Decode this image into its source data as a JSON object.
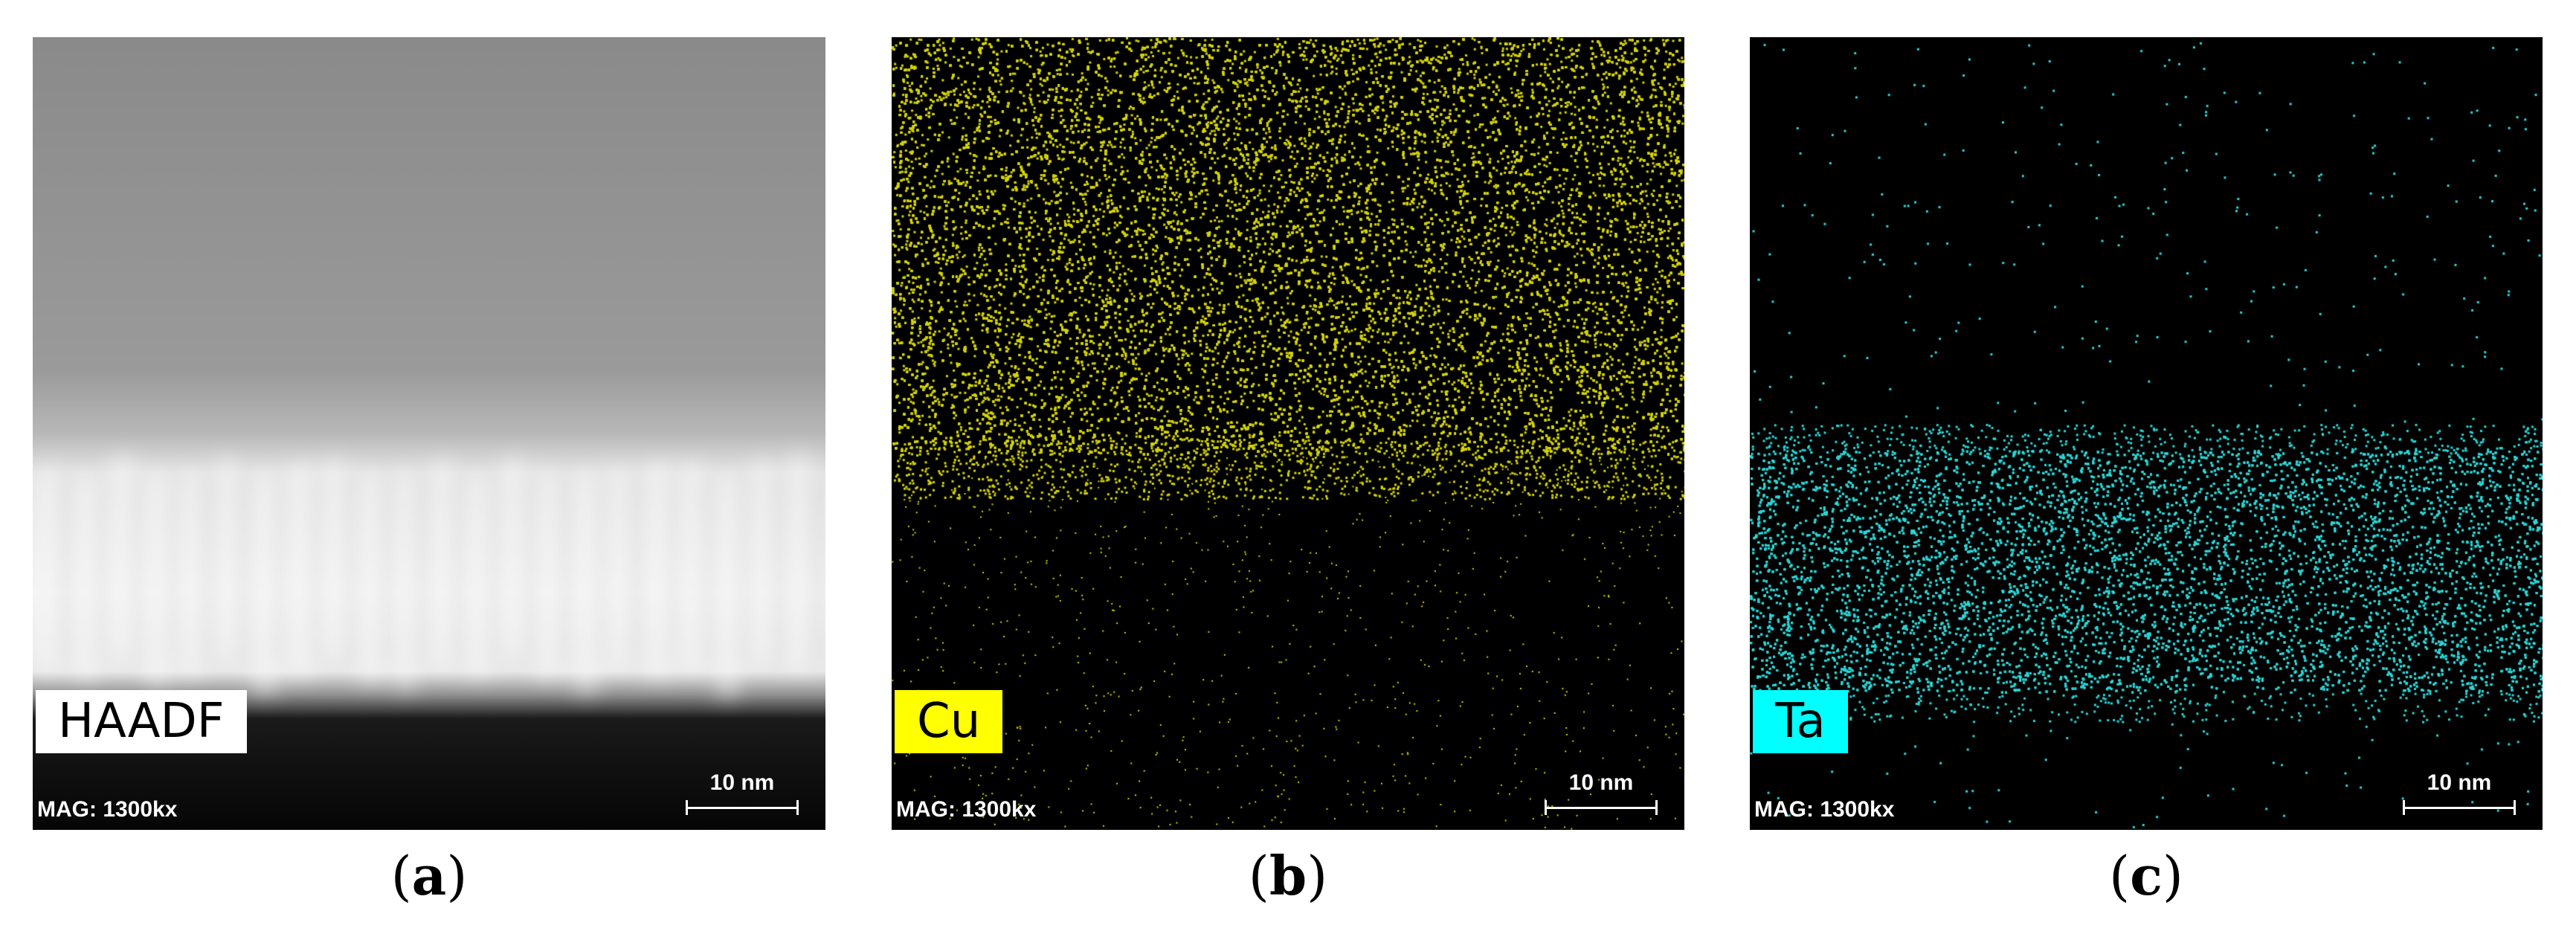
{
  "panels": [
    {
      "id": "a",
      "caption_letter": "a",
      "label": "HAADF",
      "label_bg": "#ffffff",
      "magnification": "MAG: 1300kx",
      "scale_bar": "10 nm"
    },
    {
      "id": "b",
      "caption_letter": "b",
      "label": "Cu",
      "label_bg": "#ffff00",
      "dot_color": "#d4d400",
      "magnification": "MAG: 1300kx",
      "scale_bar": "10 nm"
    },
    {
      "id": "c",
      "caption_letter": "c",
      "label": "Ta",
      "label_bg": "#00ffff",
      "dot_color": "#2ad8d8",
      "magnification": "MAG: 1300kx",
      "scale_bar": "10 nm"
    }
  ]
}
